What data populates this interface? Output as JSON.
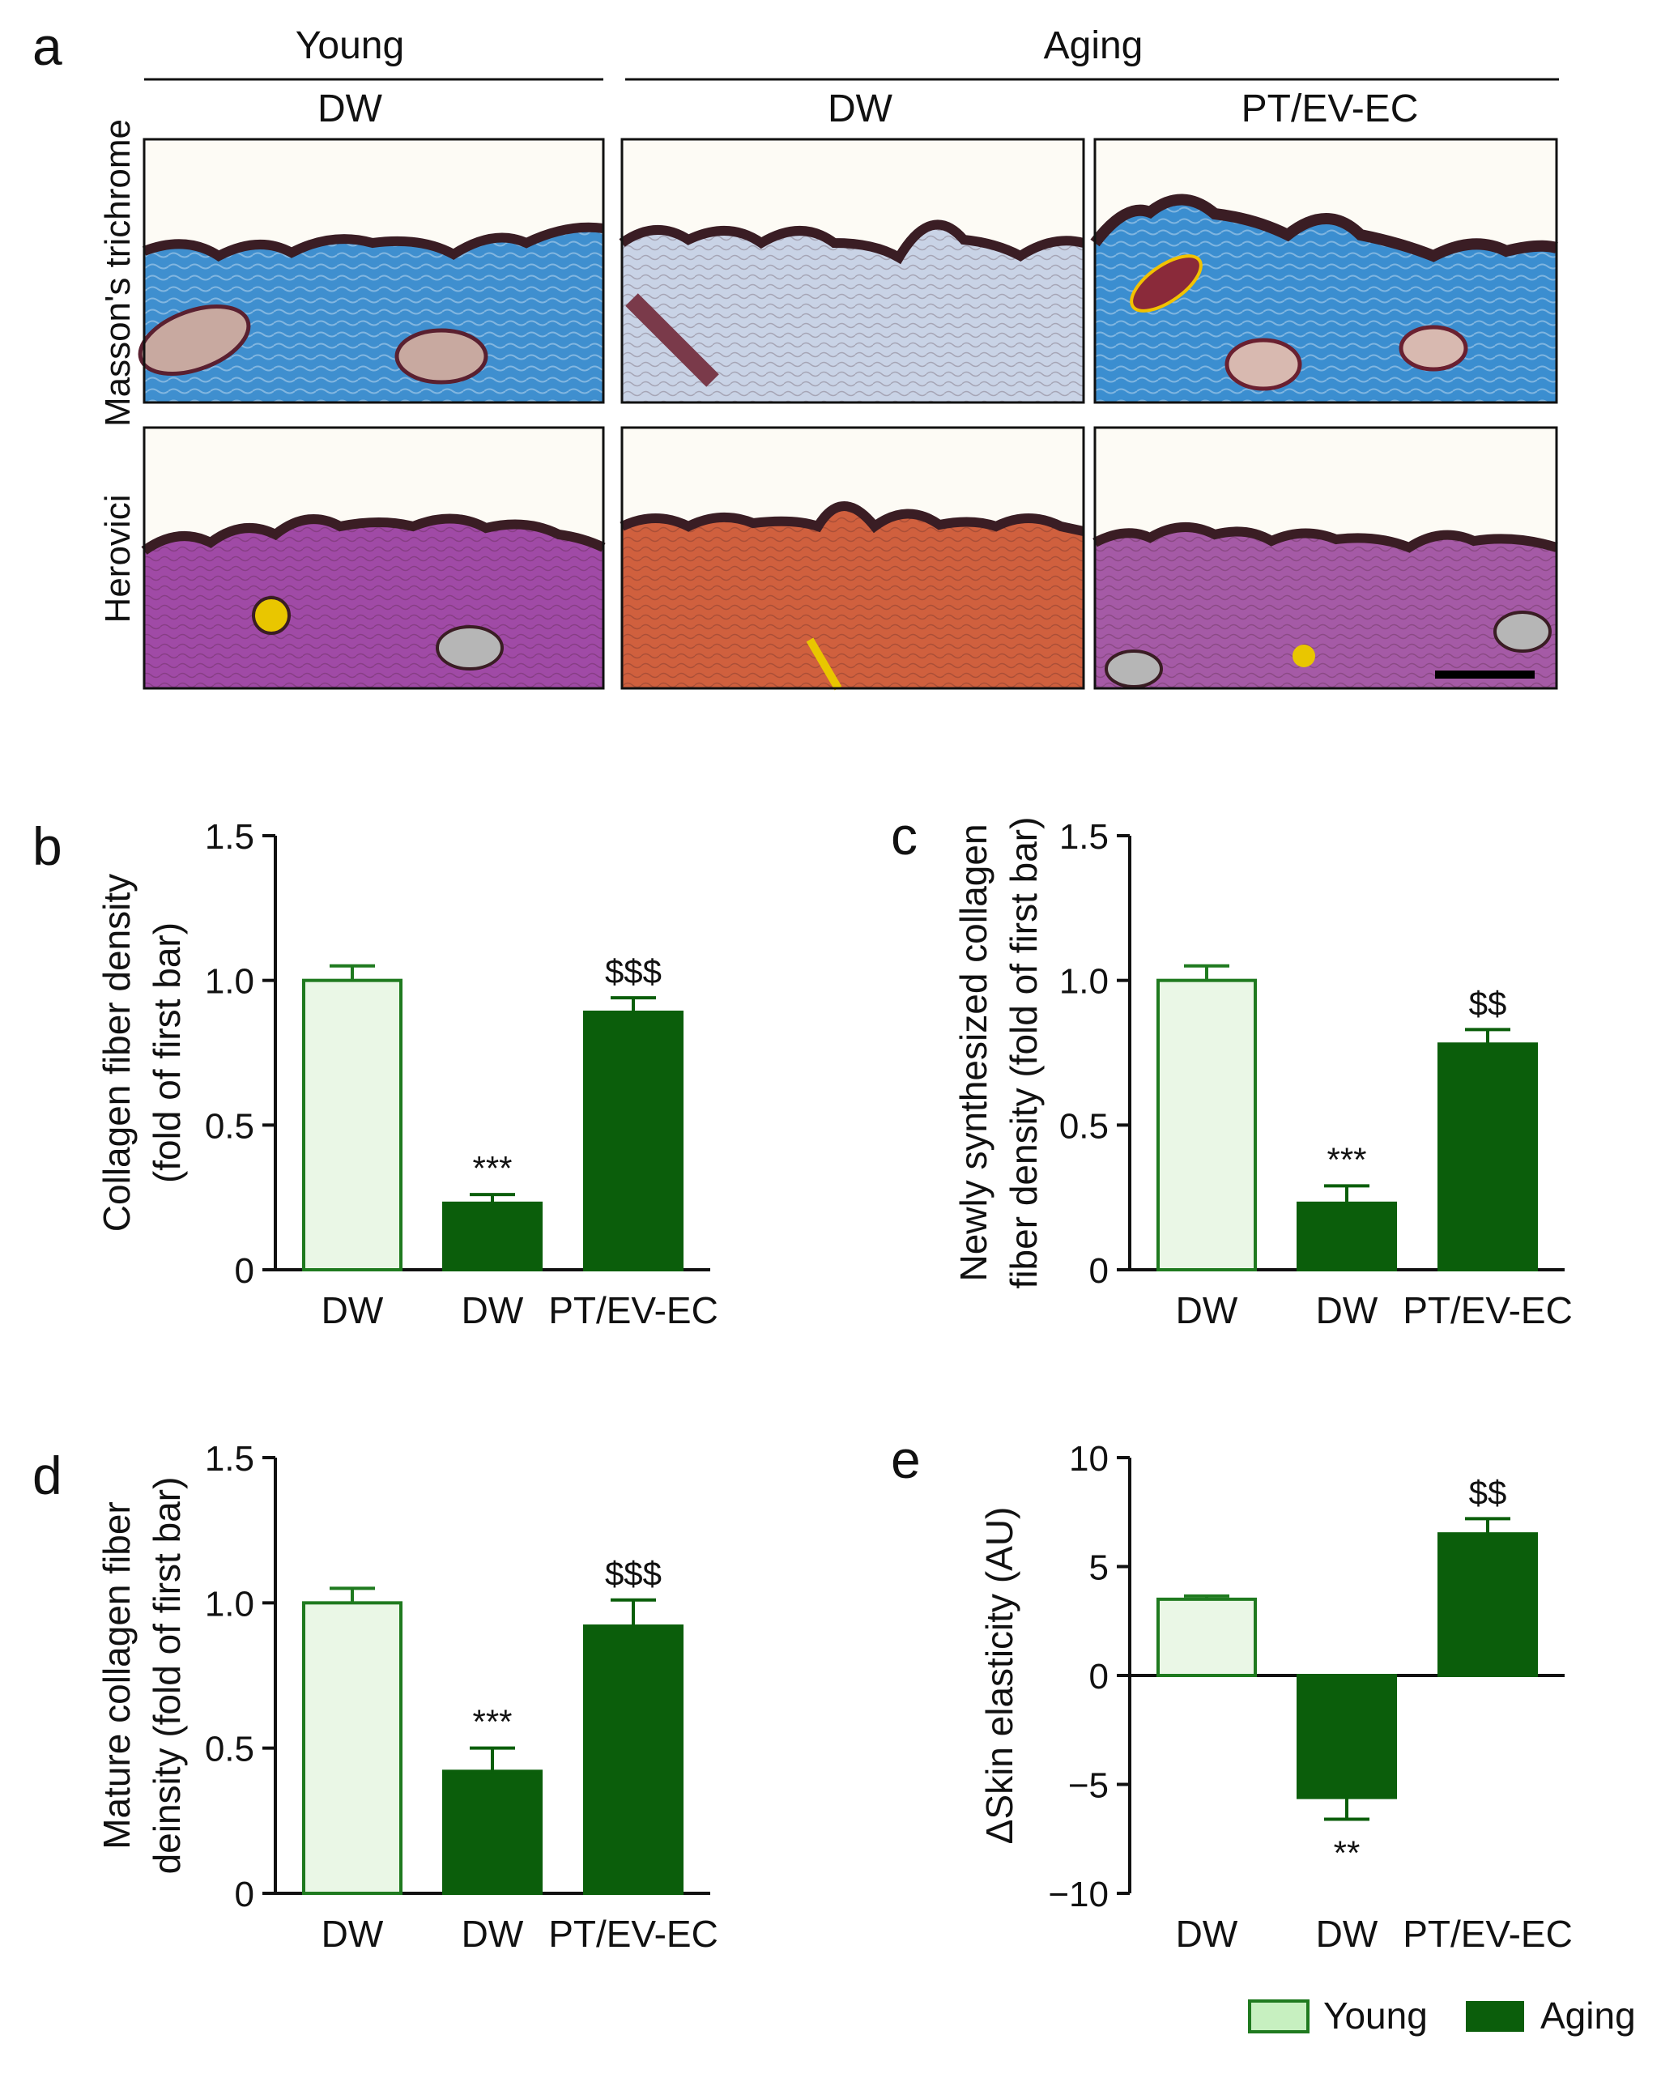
{
  "panel_letters": {
    "a": "a",
    "b": "b",
    "c": "c",
    "d": "d",
    "e": "e"
  },
  "histology": {
    "group_headers": [
      "Young",
      "Aging"
    ],
    "column_labels": [
      "DW",
      "DW",
      "PT/EV-EC"
    ],
    "row_labels": [
      "Masson's trichrome",
      "Herovici"
    ],
    "stain_colors": {
      "masson_young": "#3f8fcf",
      "masson_aging_dw": "#c9d3e6",
      "masson_aging_ptev": "#3b8ed0",
      "herovici_young": "#a04aa6",
      "herovici_aging_dw": "#d0603e",
      "herovici_aging_ptev": "#a55aa6",
      "epidermis": "#3a1d24"
    }
  },
  "colors": {
    "young_fill": "#eaf7e6",
    "young_stroke": "#1f7a1f",
    "aging_fill": "#0b5e0b"
  },
  "legend": [
    {
      "label": "Young",
      "color": "#c7f0c0"
    },
    {
      "label": "Aging",
      "color": "#0b5e0b"
    }
  ],
  "chart_data": [
    {
      "panel": "b",
      "type": "bar",
      "categories": [
        "DW",
        "DW",
        "PT/EV-EC"
      ],
      "groups": [
        "Young",
        "Aging",
        "Aging"
      ],
      "values": [
        1.0,
        0.23,
        0.89
      ],
      "errors": [
        0.05,
        0.03,
        0.05
      ],
      "annotations": [
        "",
        "***",
        "$$$"
      ],
      "ylabel": [
        "Collagen fiber density",
        "(fold of first bar)"
      ],
      "ylim": [
        0,
        1.5
      ],
      "yticks": [
        0,
        0.5,
        1.0,
        1.5
      ],
      "ytick_labels": [
        "0",
        "0.5",
        "1.0",
        "1.5"
      ]
    },
    {
      "panel": "c",
      "type": "bar",
      "categories": [
        "DW",
        "DW",
        "PT/EV-EC"
      ],
      "groups": [
        "Young",
        "Aging",
        "Aging"
      ],
      "values": [
        1.0,
        0.23,
        0.78
      ],
      "errors": [
        0.05,
        0.06,
        0.05
      ],
      "annotations": [
        "",
        "***",
        "$$"
      ],
      "ylabel": [
        "Newly synthesized collagen",
        "fiber density (fold of first bar)"
      ],
      "ylim": [
        0,
        1.5
      ],
      "yticks": [
        0,
        0.5,
        1.0,
        1.5
      ],
      "ytick_labels": [
        "0",
        "0.5",
        "1.0",
        "1.5"
      ]
    },
    {
      "panel": "d",
      "type": "bar",
      "categories": [
        "DW",
        "DW",
        "PT/EV-EC"
      ],
      "groups": [
        "Young",
        "Aging",
        "Aging"
      ],
      "values": [
        1.0,
        0.42,
        0.92
      ],
      "errors": [
        0.05,
        0.08,
        0.09
      ],
      "annotations": [
        "",
        "***",
        "$$$"
      ],
      "ylabel": [
        "Mature collagen fiber",
        "deinsity (fold of first bar)"
      ],
      "ylim": [
        0,
        1.5
      ],
      "yticks": [
        0,
        0.5,
        1.0,
        1.5
      ],
      "ytick_labels": [
        "0",
        "0.5",
        "1.0",
        "1.5"
      ]
    },
    {
      "panel": "e",
      "type": "bar",
      "categories": [
        "DW",
        "DW",
        "PT/EV-EC"
      ],
      "groups": [
        "Young",
        "Aging",
        "Aging"
      ],
      "values": [
        3.5,
        -5.6,
        6.5
      ],
      "errors": [
        0.15,
        1.0,
        0.7
      ],
      "annotations": [
        "",
        "**",
        "$$"
      ],
      "ylabel": [
        "ΔSkin elasticity (AU)"
      ],
      "ylim": [
        -10,
        10
      ],
      "yticks": [
        -10,
        -5,
        0,
        5,
        10
      ],
      "ytick_labels": [
        "−10",
        "−5",
        "0",
        "5",
        "10"
      ]
    }
  ]
}
